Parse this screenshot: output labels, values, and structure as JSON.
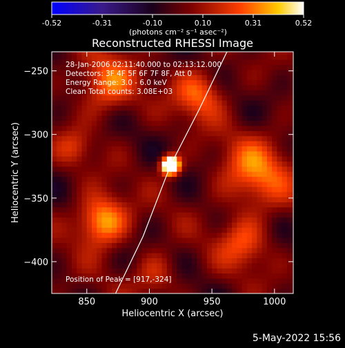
{
  "colorbar": {
    "ticks": [
      "-0.52",
      "-0.31",
      "-0.10",
      "0.10",
      "0.31",
      "0.52"
    ],
    "units_label": "(photons cm⁻² s⁻¹ asec⁻²)",
    "range": [
      -0.52,
      0.52
    ],
    "colormap": [
      "#0000ff",
      "#3a1a8a",
      "#1a001a",
      "#7a0000",
      "#ff4000",
      "#ffcc00",
      "#ffffff"
    ]
  },
  "chart_data": {
    "type": "heatmap",
    "title": "Reconstructed RHESSI Image",
    "xlabel": "Heliocentric X (arcsec)",
    "ylabel": "Heliocentric Y (arcsec)",
    "xlim": [
      822,
      1015
    ],
    "ylim": [
      -425,
      -235
    ],
    "xticks": [
      850,
      900,
      950,
      1000
    ],
    "yticks": [
      -250,
      -300,
      -350,
      -400
    ],
    "annotations": [
      "28-Jan-2006 02:11:40.000 to 02:13:12.000",
      "Detectors: 3F 4F 5F 6F 7F 8F, Att 0",
      "Energy Range: 3.0 - 6.0 keV",
      "Clean     Total counts: 3.08E+03"
    ],
    "peak_label": "Position of Peak = [917,-324]",
    "peak": {
      "x": 917,
      "y": -324,
      "value": 0.52
    },
    "limb_curve": [
      [
        873,
        -425
      ],
      [
        895,
        -380
      ],
      [
        917,
        -324
      ],
      [
        940,
        -280
      ],
      [
        962,
        -235
      ]
    ]
  },
  "footer": {
    "date": "5-May-2022 15:56"
  }
}
